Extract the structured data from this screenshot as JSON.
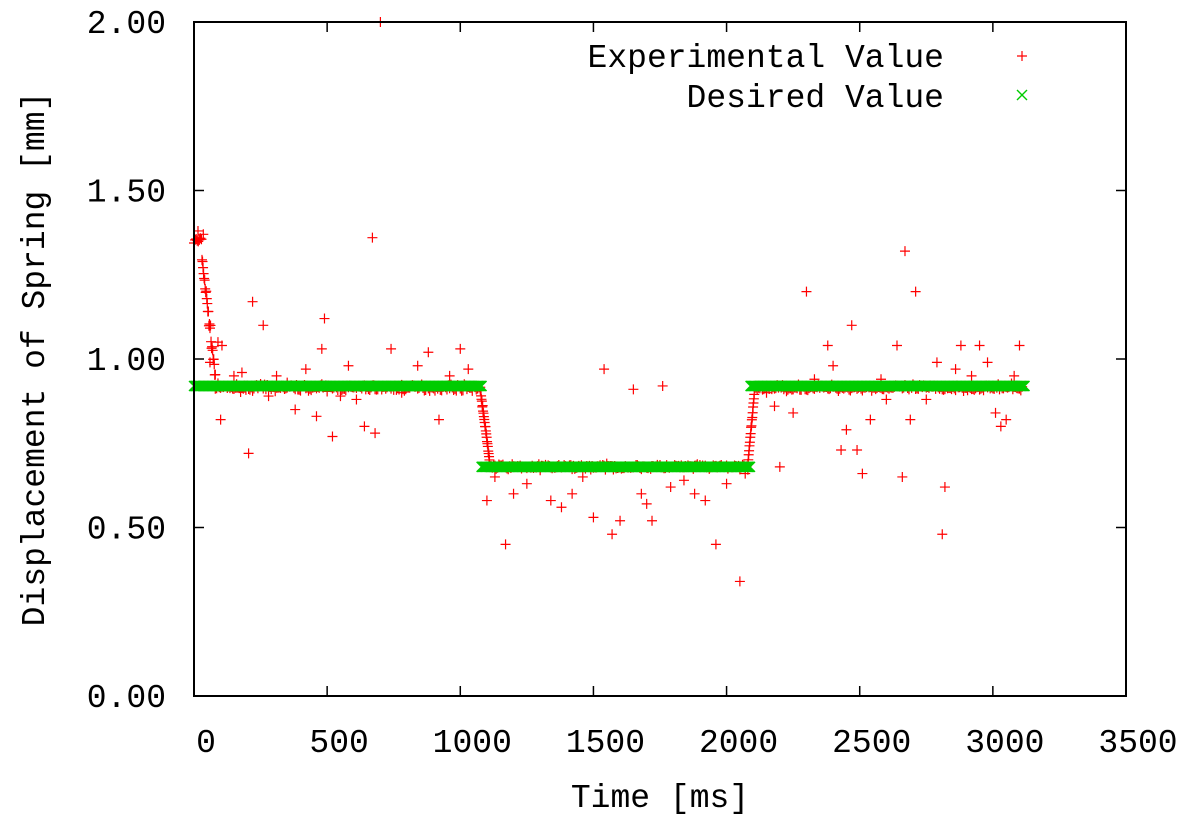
{
  "chart_data": {
    "type": "scatter",
    "title": "",
    "xlabel": "Time [ms]",
    "ylabel": "Displacement of Spring [mm]",
    "xlim": [
      0,
      3500
    ],
    "ylim": [
      0,
      2
    ],
    "x_ticks": [
      0,
      500,
      1000,
      1500,
      2000,
      2500,
      3000,
      3500
    ],
    "x_tick_labels": [
      "0",
      "500",
      "1000",
      "1500",
      "2000",
      "2500",
      "3000",
      "3500"
    ],
    "y_ticks": [
      0,
      0.5,
      1,
      1.5,
      2
    ],
    "y_tick_labels": [
      "0.00",
      "0.50",
      "1.00",
      "1.50",
      "2.00"
    ],
    "grid": false,
    "legend_position": "top-right",
    "series": [
      {
        "name": "Experimental Value",
        "marker": "+",
        "color": "#ff0000",
        "segments": [
          {
            "x_from": 0,
            "x_to": 30,
            "y": 1.35,
            "step": 4,
            "noise": 0.02
          },
          {
            "x_from": 30,
            "x_to": 80,
            "y_from": 1.3,
            "y_to": 0.95,
            "step": 2,
            "noise": 0.03
          },
          {
            "x_from": 80,
            "x_to": 1075,
            "y": 0.915,
            "step": 5,
            "noise": 0.015
          },
          {
            "x_from": 1075,
            "x_to": 1110,
            "y_from": 0.91,
            "y_to": 0.7,
            "step": 1.5,
            "noise": 0.01
          },
          {
            "x_from": 1110,
            "x_to": 2080,
            "y": 0.68,
            "step": 5,
            "noise": 0.012
          },
          {
            "x_from": 2080,
            "x_to": 2105,
            "y_from": 0.69,
            "y_to": 0.9,
            "step": 1.5,
            "noise": 0.01
          },
          {
            "x_from": 2105,
            "x_to": 3110,
            "y": 0.915,
            "step": 5,
            "noise": 0.015
          }
        ],
        "outliers": [
          [
            35,
            1.37
          ],
          [
            15,
            1.38
          ],
          [
            90,
            1.05
          ],
          [
            105,
            1.04
          ],
          [
            60,
            0.99
          ],
          [
            100,
            0.82
          ],
          [
            150,
            0.95
          ],
          [
            180,
            0.96
          ],
          [
            205,
            0.72
          ],
          [
            220,
            1.17
          ],
          [
            260,
            1.1
          ],
          [
            280,
            0.89
          ],
          [
            310,
            0.95
          ],
          [
            350,
            0.93
          ],
          [
            380,
            0.85
          ],
          [
            420,
            0.97
          ],
          [
            460,
            0.83
          ],
          [
            480,
            1.03
          ],
          [
            490,
            1.12
          ],
          [
            520,
            0.77
          ],
          [
            550,
            0.89
          ],
          [
            580,
            0.98
          ],
          [
            610,
            0.88
          ],
          [
            640,
            0.8
          ],
          [
            670,
            1.36
          ],
          [
            680,
            0.78
          ],
          [
            700,
            2.0
          ],
          [
            740,
            1.03
          ],
          [
            780,
            0.9
          ],
          [
            840,
            0.98
          ],
          [
            880,
            1.02
          ],
          [
            920,
            0.82
          ],
          [
            960,
            0.95
          ],
          [
            1000,
            1.03
          ],
          [
            1030,
            0.97
          ],
          [
            1100,
            0.58
          ],
          [
            1130,
            0.65
          ],
          [
            1170,
            0.45
          ],
          [
            1200,
            0.6
          ],
          [
            1250,
            0.63
          ],
          [
            1300,
            0.67
          ],
          [
            1340,
            0.58
          ],
          [
            1380,
            0.56
          ],
          [
            1420,
            0.6
          ],
          [
            1460,
            0.65
          ],
          [
            1500,
            0.53
          ],
          [
            1540,
            0.97
          ],
          [
            1570,
            0.48
          ],
          [
            1600,
            0.52
          ],
          [
            1650,
            0.91
          ],
          [
            1680,
            0.6
          ],
          [
            1700,
            0.57
          ],
          [
            1720,
            0.52
          ],
          [
            1760,
            0.92
          ],
          [
            1790,
            0.62
          ],
          [
            1840,
            0.64
          ],
          [
            1880,
            0.6
          ],
          [
            1920,
            0.58
          ],
          [
            1960,
            0.45
          ],
          [
            2000,
            0.63
          ],
          [
            2050,
            0.34
          ],
          [
            2070,
            0.66
          ],
          [
            2150,
            0.9
          ],
          [
            2180,
            0.86
          ],
          [
            2200,
            0.68
          ],
          [
            2250,
            0.84
          ],
          [
            2300,
            1.2
          ],
          [
            2330,
            0.94
          ],
          [
            2380,
            1.04
          ],
          [
            2400,
            0.98
          ],
          [
            2430,
            0.73
          ],
          [
            2450,
            0.79
          ],
          [
            2470,
            1.1
          ],
          [
            2490,
            0.73
          ],
          [
            2510,
            0.66
          ],
          [
            2540,
            0.82
          ],
          [
            2580,
            0.94
          ],
          [
            2600,
            0.88
          ],
          [
            2640,
            1.04
          ],
          [
            2660,
            0.65
          ],
          [
            2670,
            1.32
          ],
          [
            2690,
            0.82
          ],
          [
            2710,
            1.2
          ],
          [
            2750,
            0.88
          ],
          [
            2790,
            0.99
          ],
          [
            2810,
            0.48
          ],
          [
            2820,
            0.62
          ],
          [
            2860,
            0.97
          ],
          [
            2880,
            1.04
          ],
          [
            2920,
            0.95
          ],
          [
            2950,
            1.04
          ],
          [
            2980,
            0.99
          ],
          [
            3010,
            0.84
          ],
          [
            3030,
            0.8
          ],
          [
            3050,
            0.82
          ],
          [
            3080,
            0.95
          ],
          [
            3100,
            1.04
          ]
        ]
      },
      {
        "name": "Desired Value",
        "marker": "x",
        "color": "#00cc00",
        "segments": [
          {
            "x_from": 0,
            "x_to": 1080,
            "y": 0.92,
            "step": 3
          },
          {
            "x_from": 1080,
            "x_to": 2090,
            "y": 0.68,
            "step": 3
          },
          {
            "x_from": 2090,
            "x_to": 3120,
            "y": 0.92,
            "step": 3
          }
        ]
      }
    ]
  }
}
